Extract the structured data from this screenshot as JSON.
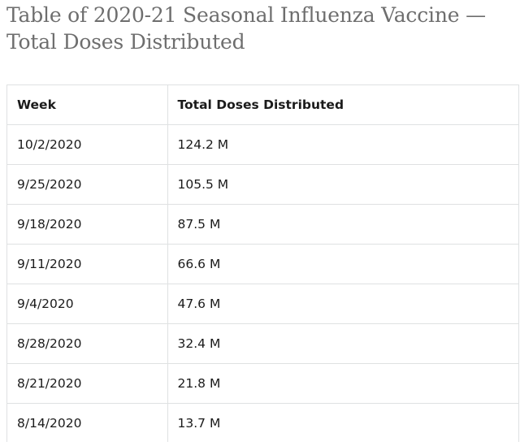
{
  "page": {
    "title": "Table of 2020-21 Seasonal Influenza Vaccine — Total Doses Distributed"
  },
  "table": {
    "headers": [
      "Week",
      "Total Doses Distributed"
    ],
    "rows": [
      [
        "10/2/2020",
        "124.2 M"
      ],
      [
        "9/25/2020",
        "105.5 M"
      ],
      [
        "9/18/2020",
        "87.5 M"
      ],
      [
        "9/11/2020",
        "66.6 M"
      ],
      [
        "9/4/2020",
        "47.6 M"
      ],
      [
        "8/28/2020",
        "32.4 M"
      ],
      [
        "8/21/2020",
        "21.8 M"
      ],
      [
        "8/14/2020",
        "13.7 M"
      ]
    ]
  }
}
